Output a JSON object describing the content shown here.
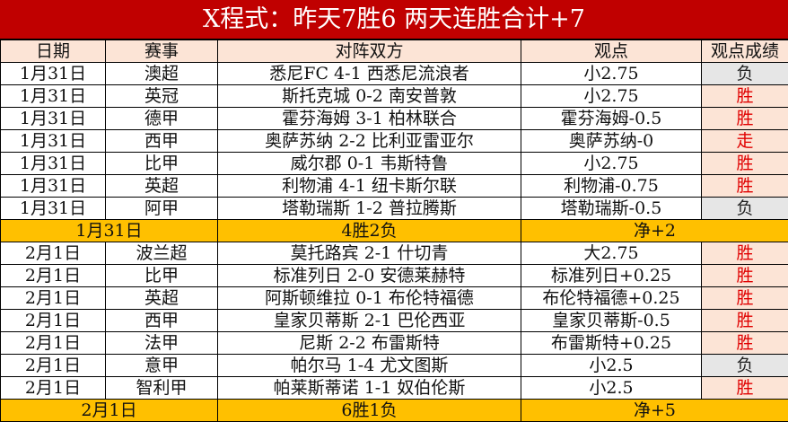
{
  "title": "X程式：昨天7胜6 两天连胜合计+7",
  "headers": [
    "日期",
    "赛事",
    "对阵双方",
    "观点",
    "观点成绩"
  ],
  "colors": {
    "title_bg": "#c00000",
    "header_bg": "#fce4d6",
    "summary_bg": "#ffc000",
    "win": "#e00000",
    "lose_bg": "#e6e6e6"
  },
  "groups": [
    {
      "rows": [
        [
          "1月31日",
          "澳超",
          "悉尼FC 4-1 西悉尼流浪者",
          "小2.75",
          "负"
        ],
        [
          "1月31日",
          "英冠",
          "斯托克城 0-2 南安普敦",
          "小2.75",
          "胜"
        ],
        [
          "1月31日",
          "德甲",
          "霍芬海姆 3-1 柏林联合",
          "霍芬海姆-0.5",
          "胜"
        ],
        [
          "1月31日",
          "西甲",
          "奥萨苏纳 2-2 比利亚雷亚尔",
          "奥萨苏纳-0",
          "走"
        ],
        [
          "1月31日",
          "比甲",
          "威尔郡 0-1 韦斯特鲁",
          "小2.75",
          "胜"
        ],
        [
          "1月31日",
          "英超",
          "利物浦 4-1 纽卡斯尔联",
          "利物浦-0.75",
          "胜"
        ],
        [
          "1月31日",
          "阿甲",
          "塔勒瑞斯 1-2 普拉腾斯",
          "塔勒瑞斯-0.5",
          "负"
        ]
      ],
      "summary": {
        "date": "1月31日",
        "record": "4胜2负",
        "net": "净+2"
      }
    },
    {
      "rows": [
        [
          "2月1日",
          "波兰超",
          "莫托路宾 2-1 什切青",
          "大2.75",
          "胜"
        ],
        [
          "2月1日",
          "比甲",
          "标准列日 2-0 安德莱赫特",
          "标准列日+0.25",
          "胜"
        ],
        [
          "2月1日",
          "英超",
          "阿斯顿维拉 0-1 布伦特福德",
          "布伦特福德+0.25",
          "胜"
        ],
        [
          "2月1日",
          "西甲",
          "皇家贝蒂斯 2-1 巴伦西亚",
          "皇家贝蒂斯-0.5",
          "胜"
        ],
        [
          "2月1日",
          "法甲",
          "尼斯 2-2 布雷斯特",
          "布雷斯特+0.25",
          "胜"
        ],
        [
          "2月1日",
          "意甲",
          "帕尔马 1-4 尤文图斯",
          "小2.5",
          "负"
        ],
        [
          "2月1日",
          "智利甲",
          "帕莱斯蒂诺 1-1 奴伯伦斯",
          "小2.5",
          "胜"
        ]
      ],
      "summary": {
        "date": "2月1日",
        "record": "6胜1负",
        "net": "净+5"
      }
    }
  ]
}
